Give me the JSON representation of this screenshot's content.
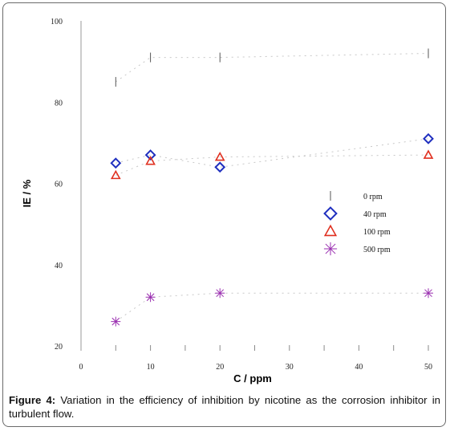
{
  "caption": {
    "label": "Figure 4:",
    "text": "Variation in the efficiency of inhibition by nicotine as the corrosion inhibitor in turbulent flow."
  },
  "chart_data": {
    "type": "scatter",
    "title": "",
    "xlabel": "C / ppm",
    "ylabel": "IE / %",
    "xlim": [
      0,
      50
    ],
    "ylim": [
      20,
      100
    ],
    "x_ticks": [
      "0",
      "10",
      "20",
      "30",
      "40",
      "50"
    ],
    "y_ticks": [
      "20",
      "40",
      "60",
      "80",
      "100"
    ],
    "grid": false,
    "legend_position": "right-middle",
    "series": [
      {
        "name": "0 rpm",
        "marker": "vline",
        "color": "#555555",
        "x": [
          5,
          10,
          20,
          50
        ],
        "y": [
          85,
          91,
          91,
          92
        ]
      },
      {
        "name": "40 rpm",
        "marker": "diamond",
        "color": "#1f2fbf",
        "x": [
          5,
          10,
          20,
          50
        ],
        "y": [
          65,
          67,
          64,
          71
        ]
      },
      {
        "name": "100 rpm",
        "marker": "triangle",
        "color": "#e03020",
        "x": [
          5,
          10,
          20,
          50
        ],
        "y": [
          62,
          65.5,
          66.5,
          67
        ]
      },
      {
        "name": "500 rpm",
        "marker": "star",
        "color": "#9a2fb0",
        "x": [
          5,
          10,
          20,
          50
        ],
        "y": [
          26,
          32,
          33,
          33
        ]
      }
    ]
  }
}
